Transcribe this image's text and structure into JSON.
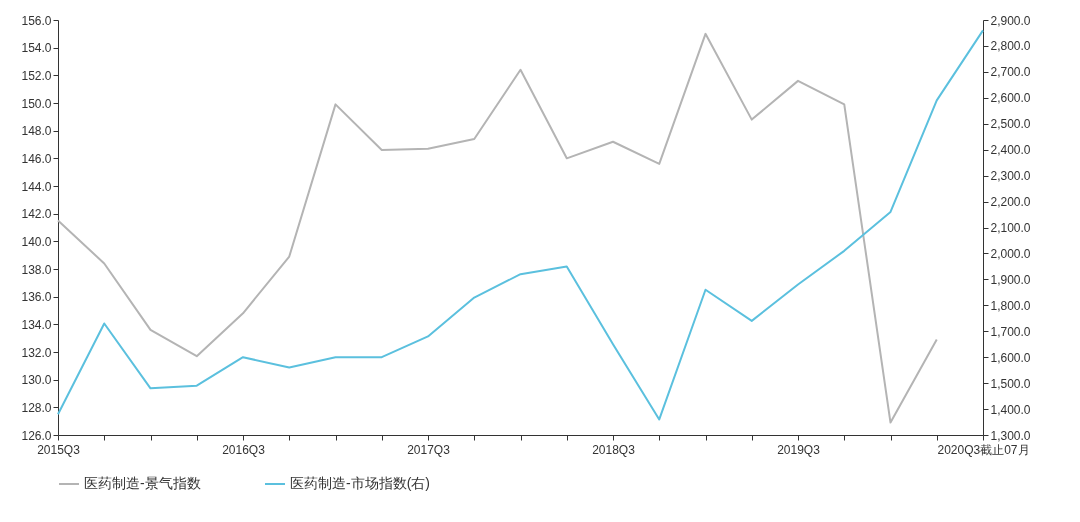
{
  "chart_data": {
    "type": "line",
    "categories": [
      "2015Q3",
      null,
      null,
      null,
      "2016Q3",
      null,
      null,
      null,
      "2017Q3",
      null,
      null,
      null,
      "2018Q3",
      null,
      null,
      null,
      "2019Q3",
      null,
      null,
      null,
      "2020Q3截止07月"
    ],
    "series": [
      {
        "name": "医药制造-景气指数",
        "color": "#b4b4b4",
        "values": [
          141.5,
          138.4,
          133.6,
          131.7,
          134.8,
          138.9,
          149.9,
          146.6,
          146.7,
          147.4,
          152.4,
          146.0,
          147.2,
          145.6,
          155.0,
          148.8,
          151.6,
          149.9,
          126.9,
          132.9,
          null
        ]
      },
      {
        "name": "医药制造-市场指数(右)",
        "color": "#5bc0de",
        "axis": "y2",
        "values": [
          1380,
          1730,
          1480,
          1490,
          1600,
          1560,
          1600,
          1600,
          1680,
          1830,
          1920,
          1950,
          1650,
          1360,
          1860,
          1740,
          1880,
          2010,
          2160,
          2590,
          2860
        ]
      }
    ],
    "ylim": [
      126,
      156
    ],
    "yticks": [
      {
        "value": 126,
        "label": "126.0"
      },
      {
        "value": 128,
        "label": "128.0"
      },
      {
        "value": 130,
        "label": "130.0"
      },
      {
        "value": 132,
        "label": "132.0"
      },
      {
        "value": 134,
        "label": "134.0"
      },
      {
        "value": 136,
        "label": "136.0"
      },
      {
        "value": 138,
        "label": "138.0"
      },
      {
        "value": 140,
        "label": "140.0"
      },
      {
        "value": 142,
        "label": "142.0"
      },
      {
        "value": 144,
        "label": "144.0"
      },
      {
        "value": 146,
        "label": "146.0"
      },
      {
        "value": 148,
        "label": "148.0"
      },
      {
        "value": 150,
        "label": "150.0"
      },
      {
        "value": 152,
        "label": "152.0"
      },
      {
        "value": 154,
        "label": "154.0"
      },
      {
        "value": 156,
        "label": "156.0"
      }
    ],
    "y2lim": [
      1300,
      2900
    ],
    "y2ticks": [
      {
        "value": 1300,
        "label": "1,300.0"
      },
      {
        "value": 1400,
        "label": "1,400.0"
      },
      {
        "value": 1500,
        "label": "1,500.0"
      },
      {
        "value": 1600,
        "label": "1,600.0"
      },
      {
        "value": 1700,
        "label": "1,700.0"
      },
      {
        "value": 1800,
        "label": "1,800.0"
      },
      {
        "value": 1900,
        "label": "1,900.0"
      },
      {
        "value": 2000,
        "label": "2,000.0"
      },
      {
        "value": 2100,
        "label": "2,100.0"
      },
      {
        "value": 2200,
        "label": "2,200.0"
      },
      {
        "value": 2300,
        "label": "2,300.0"
      },
      {
        "value": 2400,
        "label": "2,400.0"
      },
      {
        "value": 2500,
        "label": "2,500.0"
      },
      {
        "value": 2600,
        "label": "2,600.0"
      },
      {
        "value": 2700,
        "label": "2,700.0"
      },
      {
        "value": 2800,
        "label": "2,800.0"
      },
      {
        "value": 2900,
        "label": "2,900.0"
      }
    ],
    "grid": false,
    "legend": "bottom",
    "marker": "none",
    "line_style": "solid"
  }
}
